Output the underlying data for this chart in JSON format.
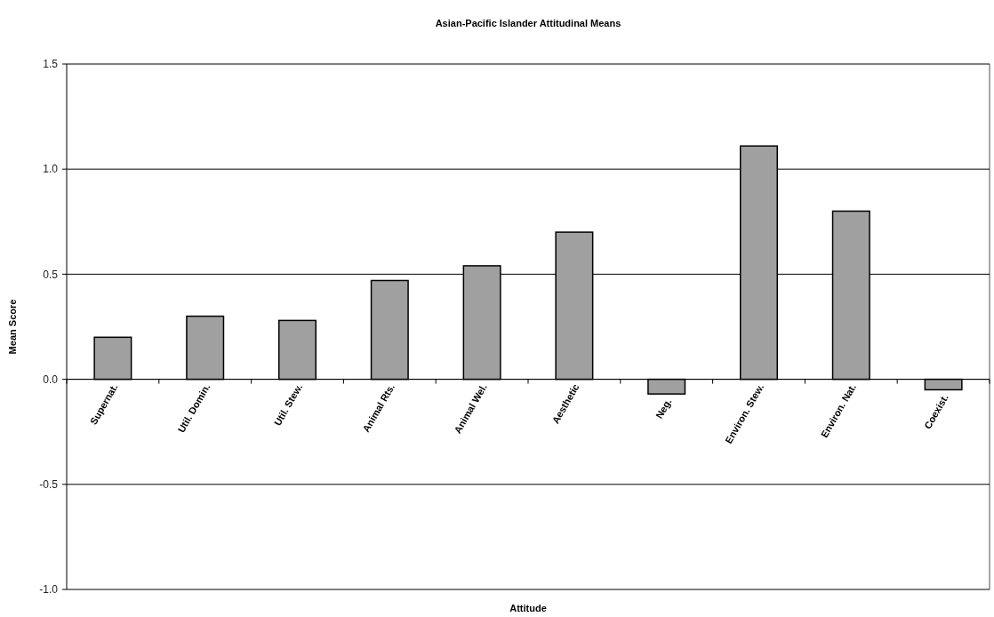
{
  "chart_data": {
    "type": "bar",
    "title": "Asian-Pacific Islander Attitudinal Means",
    "xlabel": "Attitude",
    "ylabel": "Mean Score",
    "categories": [
      "Supernat.",
      "Util. Domin.",
      "Util. Stew.",
      "Animal Rts.",
      "Animal Wel.",
      "Aesthetic",
      "Neg.",
      "Environ. Stew.",
      "Environ. Nat.",
      "Coexist."
    ],
    "values": [
      0.2,
      0.3,
      0.28,
      0.47,
      0.54,
      0.7,
      -0.07,
      1.11,
      0.8,
      -0.05
    ],
    "color": "#a0a0a0",
    "ylim": [
      -1.0,
      1.5
    ],
    "yticks": [
      {
        "value": -1,
        "label": "-1.0"
      },
      {
        "value": -0.5,
        "label": "-0.5"
      },
      {
        "value": 0,
        "label": "0.0"
      },
      {
        "value": 0.5,
        "label": "0.5"
      },
      {
        "value": 1,
        "label": "1.0"
      },
      {
        "value": 1.5,
        "label": "1.5"
      }
    ],
    "grid": "y"
  }
}
